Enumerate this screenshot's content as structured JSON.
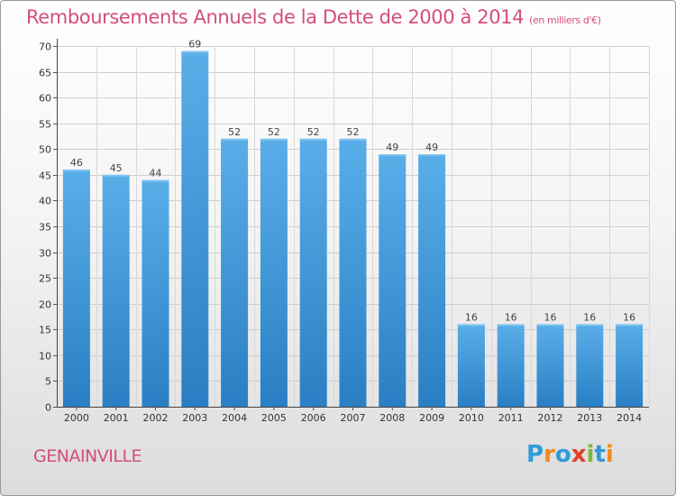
{
  "title": "Remboursements Annuels de la Dette de 2000 à 2014",
  "unit_note": "(en milliers d'€)",
  "commune": "GENAINVILLE",
  "brand": {
    "letters": [
      "P",
      "r",
      "o",
      "x",
      "i",
      "t",
      "i"
    ],
    "colors": [
      "#2e9bd8",
      "#f28a1c",
      "#2e9bd8",
      "#e0412a",
      "#7cb83a",
      "#2e9bd8",
      "#f28a1c"
    ]
  },
  "colors": {
    "bar_top": "#5aaee8",
    "bar_bottom": "#2a7fc4",
    "title": "#d44e7a"
  },
  "chart_data": {
    "type": "bar",
    "categories": [
      "2000",
      "2001",
      "2002",
      "2003",
      "2004",
      "2005",
      "2006",
      "2007",
      "2008",
      "2009",
      "2010",
      "2011",
      "2012",
      "2013",
      "2014"
    ],
    "values": [
      46,
      45,
      44,
      69,
      52,
      52,
      52,
      52,
      49,
      49,
      16,
      16,
      16,
      16,
      16
    ],
    "title": "Remboursements Annuels de la Dette de 2000 à 2014",
    "xlabel": "",
    "ylabel": "",
    "ylim": [
      0,
      70
    ],
    "yticks": [
      0,
      5,
      10,
      15,
      20,
      25,
      30,
      35,
      40,
      45,
      50,
      55,
      60,
      65,
      70
    ],
    "grid": true,
    "data_labels": true
  }
}
